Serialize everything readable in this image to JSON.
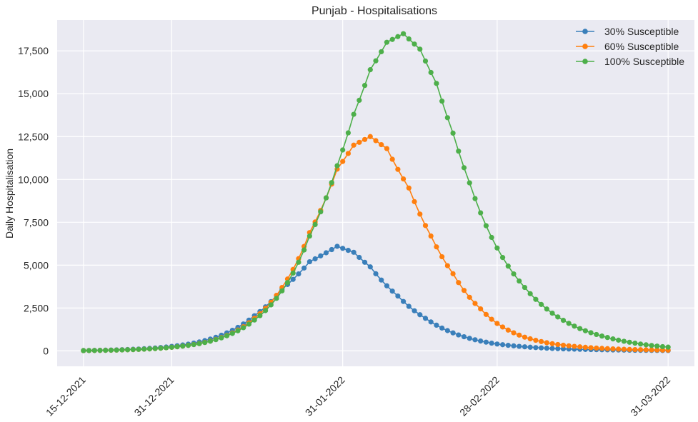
{
  "chart_data": {
    "type": "line",
    "title": "Punjab - Hospitalisations",
    "xlabel": "",
    "ylabel": "Daily Hospitalisation",
    "x_start": "15-12-2021",
    "x_end": "31-03-2022",
    "x_tick_labels": [
      "15-12-2021",
      "31-12-2021",
      "31-01-2022",
      "28-02-2022",
      "31-03-2022"
    ],
    "y_ticks": [
      0,
      2500,
      5000,
      7500,
      10000,
      12500,
      15000,
      17500
    ],
    "y_tick_labels": [
      "0",
      "2,500",
      "5,000",
      "7,500",
      "10,000",
      "12,500",
      "15,000",
      "17,500"
    ],
    "ylim": [
      -900,
      19300
    ],
    "grid": true,
    "legend_position": "top-right",
    "background": "#eaeaf2",
    "series": [
      {
        "name": "30% Susceptible",
        "color": "#3a7fba",
        "peak_date": "30-01-2022",
        "peak_value": 6100,
        "keypoints": [
          [
            "15-12-2021",
            20
          ],
          [
            "22-12-2021",
            70
          ],
          [
            "31-12-2021",
            260
          ],
          [
            "05-01-2022",
            520
          ],
          [
            "10-01-2022",
            1050
          ],
          [
            "15-01-2022",
            2050
          ],
          [
            "20-01-2022",
            3600
          ],
          [
            "25-01-2022",
            5200
          ],
          [
            "30-01-2022",
            6100
          ],
          [
            "02-02-2022",
            5750
          ],
          [
            "05-02-2022",
            4900
          ],
          [
            "10-02-2022",
            3200
          ],
          [
            "15-02-2022",
            1900
          ],
          [
            "20-02-2022",
            1050
          ],
          [
            "28-02-2022",
            400
          ],
          [
            "10-03-2022",
            140
          ],
          [
            "20-03-2022",
            60
          ],
          [
            "31-03-2022",
            20
          ]
        ]
      },
      {
        "name": "60% Susceptible",
        "color": "#ff7f0e",
        "peak_date": "05-02-2022",
        "peak_value": 12500,
        "keypoints": [
          [
            "15-12-2021",
            15
          ],
          [
            "22-12-2021",
            55
          ],
          [
            "31-12-2021",
            210
          ],
          [
            "05-01-2022",
            430
          ],
          [
            "10-01-2022",
            900
          ],
          [
            "15-01-2022",
            1900
          ],
          [
            "20-01-2022",
            3700
          ],
          [
            "25-01-2022",
            6900
          ],
          [
            "30-01-2022",
            10600
          ],
          [
            "02-02-2022",
            12000
          ],
          [
            "05-02-2022",
            12500
          ],
          [
            "08-02-2022",
            11800
          ],
          [
            "12-02-2022",
            9500
          ],
          [
            "16-02-2022",
            6700
          ],
          [
            "20-02-2022",
            4500
          ],
          [
            "25-02-2022",
            2450
          ],
          [
            "28-02-2022",
            1600
          ],
          [
            "05-03-2022",
            800
          ],
          [
            "10-03-2022",
            420
          ],
          [
            "20-03-2022",
            130
          ],
          [
            "31-03-2022",
            40
          ]
        ]
      },
      {
        "name": "100% Susceptible",
        "color": "#4daf4a",
        "peak_date": "11-02-2022",
        "peak_value": 18500,
        "keypoints": [
          [
            "15-12-2021",
            15
          ],
          [
            "22-12-2021",
            55
          ],
          [
            "31-12-2021",
            210
          ],
          [
            "05-01-2022",
            420
          ],
          [
            "10-01-2022",
            880
          ],
          [
            "15-01-2022",
            1800
          ],
          [
            "20-01-2022",
            3500
          ],
          [
            "25-01-2022",
            6700
          ],
          [
            "30-01-2022",
            10800
          ],
          [
            "02-02-2022",
            13800
          ],
          [
            "05-02-2022",
            16400
          ],
          [
            "08-02-2022",
            18000
          ],
          [
            "11-02-2022",
            18500
          ],
          [
            "14-02-2022",
            17600
          ],
          [
            "17-02-2022",
            15600
          ],
          [
            "20-02-2022",
            12700
          ],
          [
            "23-02-2022",
            9800
          ],
          [
            "26-02-2022",
            7300
          ],
          [
            "28-02-2022",
            6000
          ],
          [
            "05-03-2022",
            3700
          ],
          [
            "10-03-2022",
            2200
          ],
          [
            "15-03-2022",
            1300
          ],
          [
            "20-03-2022",
            780
          ],
          [
            "25-03-2022",
            450
          ],
          [
            "31-03-2022",
            220
          ]
        ]
      }
    ]
  }
}
